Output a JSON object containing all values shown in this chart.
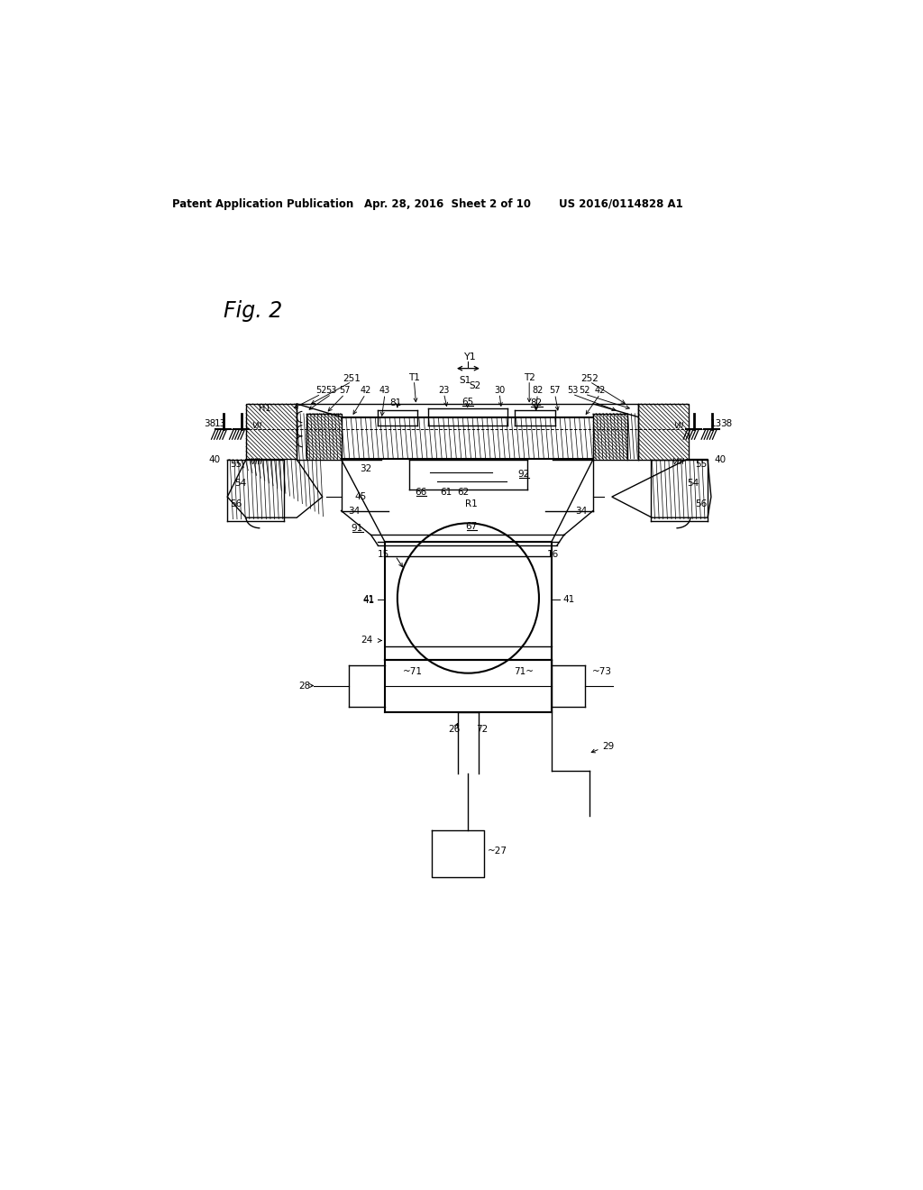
{
  "bg_color": "#ffffff",
  "line_color": "#000000",
  "header_left": "Patent Application Publication",
  "header_mid": "Apr. 28, 2016  Sheet 2 of 10",
  "header_right": "US 2016/0114828 A1",
  "fig_label": "Fig. 2"
}
